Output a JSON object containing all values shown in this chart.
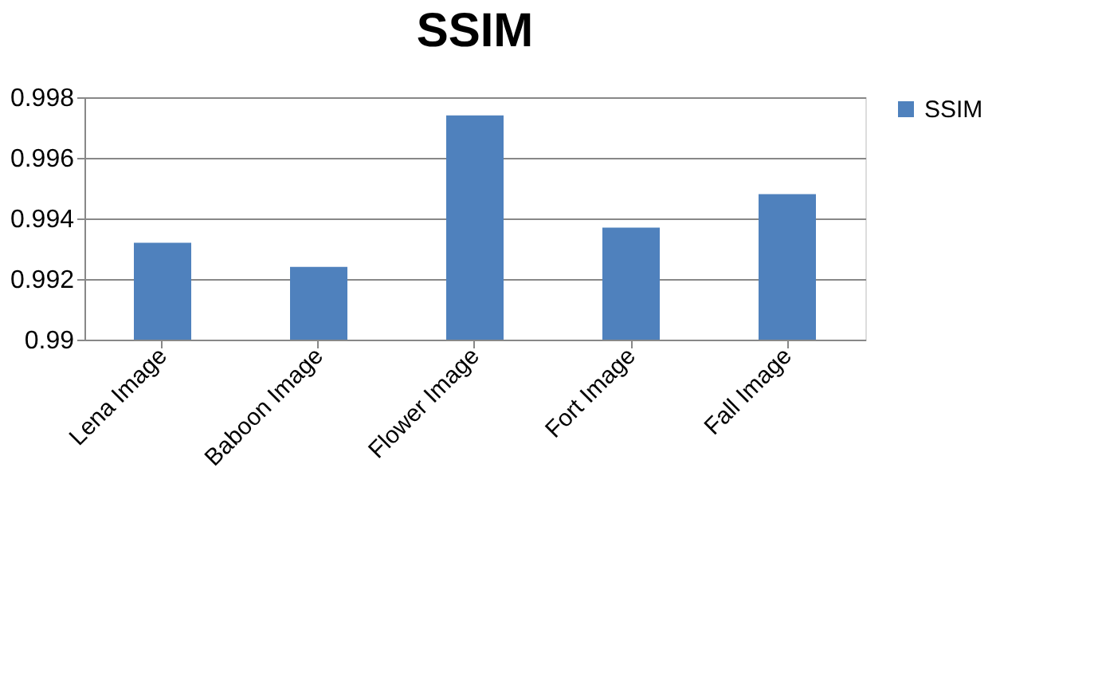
{
  "chart_data": {
    "type": "bar",
    "title": "SSIM",
    "categories": [
      "Lena Image",
      "Baboon Image",
      "Flower Image",
      "Fort Image",
      "Fall Image"
    ],
    "series": [
      {
        "name": "SSIM",
        "color": "#4f81bd",
        "values": [
          0.9932,
          0.9924,
          0.9974,
          0.9937,
          0.9948
        ]
      }
    ],
    "ylim": [
      0.99,
      0.998
    ],
    "yticks": [
      {
        "value": 0.99,
        "label": "0.99"
      },
      0.992,
      0.994,
      0.996,
      0.998
    ],
    "grid": "y",
    "legend": "right"
  }
}
